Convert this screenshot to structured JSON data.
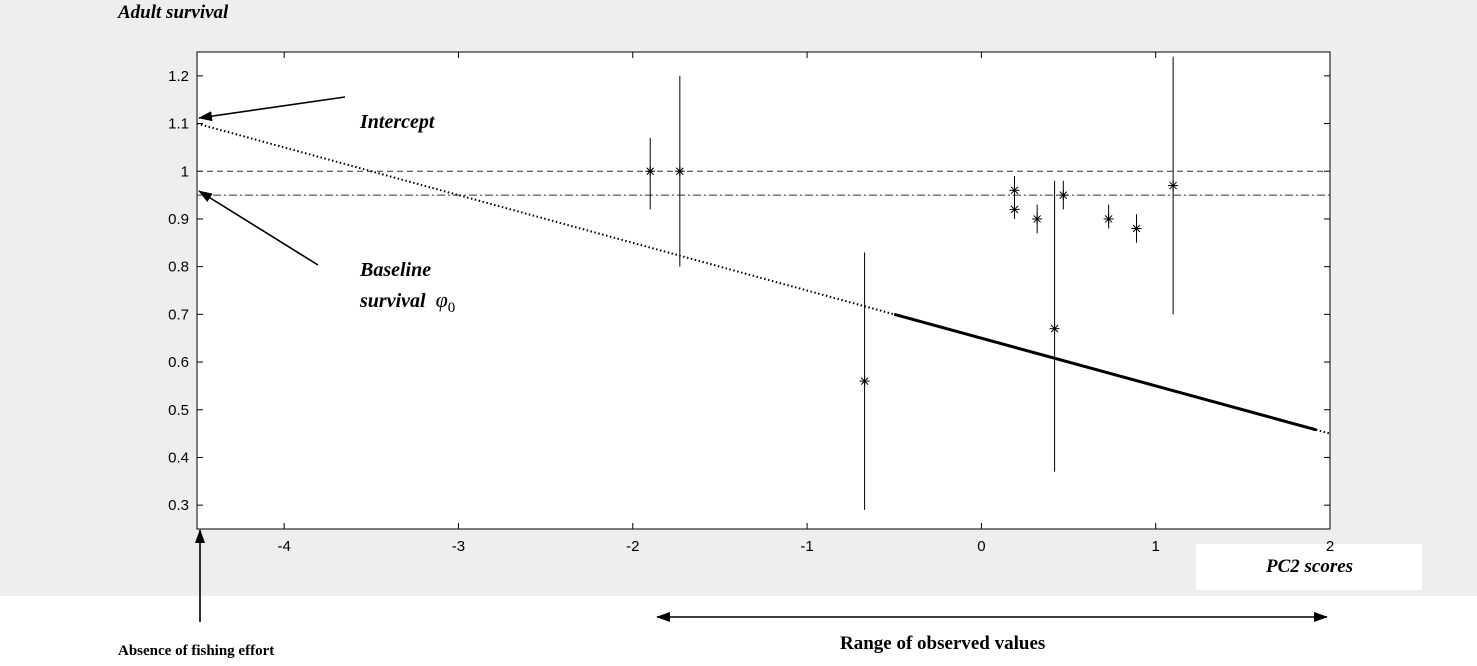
{
  "chart_data": {
    "type": "scatter",
    "ylabel": "Adult survival",
    "xlabel": "PC2 scores",
    "xlim": [
      -4.5,
      2
    ],
    "ylim": [
      0.25,
      1.25
    ],
    "x_ticks": [
      -4,
      -3,
      -2,
      -1,
      0,
      1,
      2
    ],
    "y_ticks": [
      0.3,
      0.4,
      0.5,
      0.6,
      0.7,
      0.8,
      0.9,
      1,
      1.1,
      1.2
    ],
    "grid": false,
    "points": [
      {
        "x": -1.9,
        "y": 1.0,
        "lo": 0.92,
        "hi": 1.07
      },
      {
        "x": -1.73,
        "y": 1.0,
        "lo": 0.8,
        "hi": 1.2
      },
      {
        "x": -0.67,
        "y": 0.56,
        "lo": 0.29,
        "hi": 0.83
      },
      {
        "x": 0.19,
        "y": 0.96,
        "lo": 0.93,
        "hi": 0.99
      },
      {
        "x": 0.19,
        "y": 0.92,
        "lo": 0.9,
        "hi": 0.95
      },
      {
        "x": 0.32,
        "y": 0.9,
        "lo": 0.87,
        "hi": 0.93
      },
      {
        "x": 0.42,
        "y": 0.67,
        "lo": 0.37,
        "hi": 0.98
      },
      {
        "x": 0.47,
        "y": 0.95,
        "lo": 0.92,
        "hi": 0.98
      },
      {
        "x": 0.73,
        "y": 0.9,
        "lo": 0.88,
        "hi": 0.93
      },
      {
        "x": 0.89,
        "y": 0.88,
        "lo": 0.85,
        "hi": 0.91
      },
      {
        "x": 1.1,
        "y": 0.97,
        "lo": 0.7,
        "hi": 1.24
      }
    ],
    "fit_line": {
      "intercept": 1.1,
      "slope": -0.1,
      "solid_from": -0.5,
      "solid_to": 1.92
    },
    "reference_lines": {
      "dashed_y": 1.0,
      "dashdot_y": 0.95
    }
  },
  "annotations": {
    "intercept": "Intercept",
    "baseline_line1": "Baseline",
    "baseline_line2": "survival",
    "baseline_symbol": "φ",
    "baseline_subscript": "0",
    "absence": "Absence of fishing effort",
    "range": "Range of observed values"
  }
}
